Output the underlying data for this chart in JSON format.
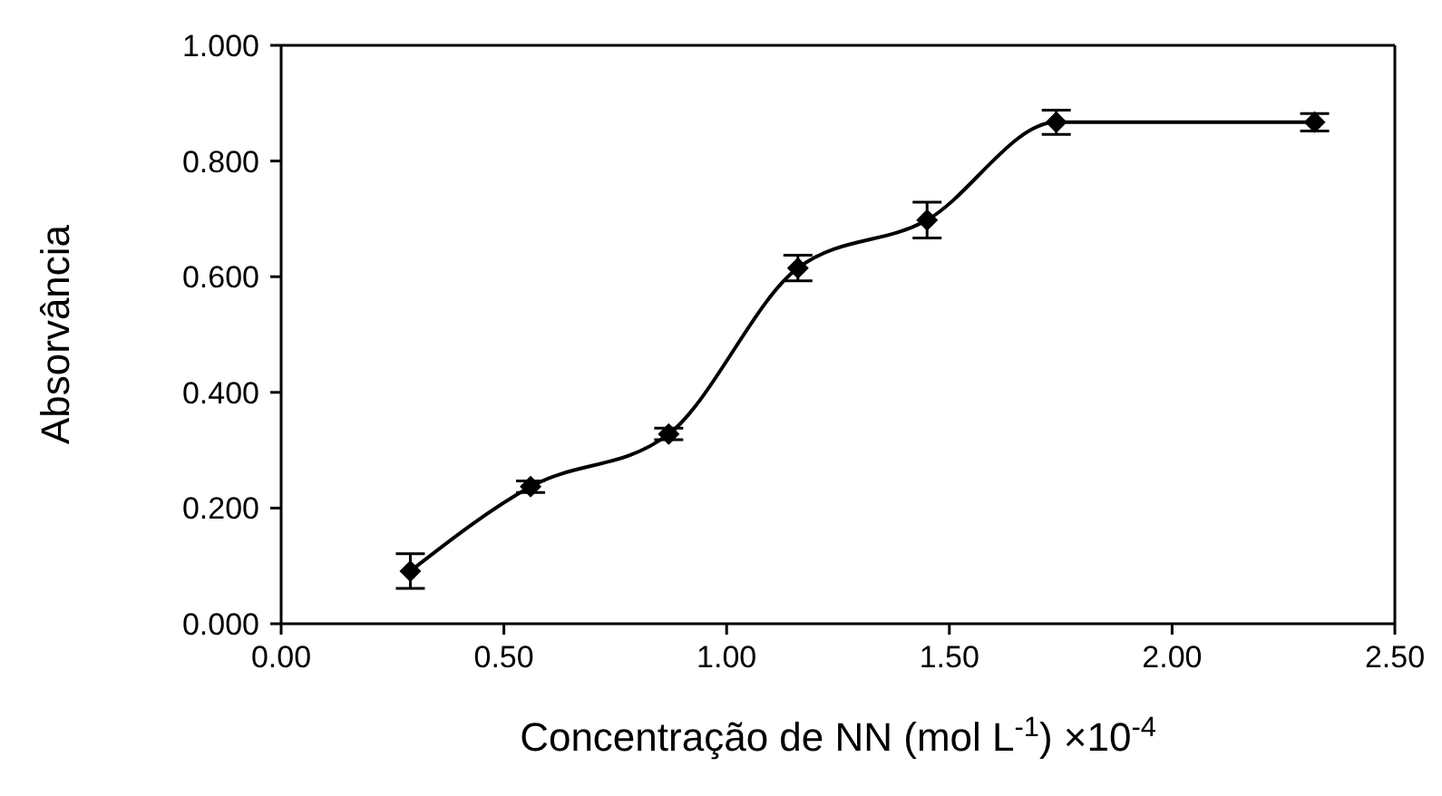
{
  "chart_data": {
    "type": "line",
    "xlabel": "Concentração de NN (mol L$^{-1}$)  ×10$^{-4}$",
    "ylabel": "Absorvância",
    "x": [
      0.29,
      0.56,
      0.87,
      1.16,
      1.45,
      1.74,
      2.32
    ],
    "series": [
      {
        "color": "#000000",
        "values": [
          0.091,
          0.237,
          0.328,
          0.615,
          0.698,
          0.867,
          0.867
        ],
        "errors": [
          0.03,
          0.01,
          0.01,
          0.022,
          0.031,
          0.021,
          0.015
        ]
      }
    ],
    "xlim": [
      0,
      2.5
    ],
    "xticks": [
      {
        "value": 0,
        "label": "0.00"
      },
      {
        "value": 0.5,
        "label": "0.50"
      },
      {
        "value": 1,
        "label": "1.00"
      },
      {
        "value": 1.5,
        "label": "1.50"
      },
      {
        "value": 2,
        "label": "2.00"
      },
      {
        "value": 2.5,
        "label": "2.50"
      }
    ],
    "ylim": [
      0,
      1
    ],
    "yticks": [
      {
        "value": 0,
        "label": "0.000"
      },
      {
        "value": 0.2,
        "label": "0.200"
      },
      {
        "value": 0.4,
        "label": "0.400"
      },
      {
        "value": 0.6,
        "label": "0.600"
      },
      {
        "value": 0.8,
        "label": "0.800"
      },
      {
        "value": 1,
        "label": "1.000"
      }
    ],
    "grid": false,
    "legend": false,
    "marker": "diamond",
    "line_style": "solid"
  }
}
